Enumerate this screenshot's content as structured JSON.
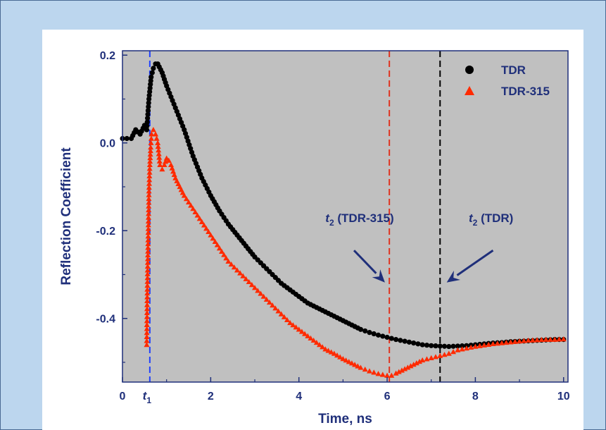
{
  "chart_data": {
    "type": "scatter",
    "xlabel": "Time, ns",
    "ylabel": "Reflection Coefficient",
    "xlim": [
      0,
      10.1
    ],
    "ylim": [
      -0.545,
      0.21
    ],
    "x_ticks": [
      "0",
      "2",
      "4",
      "6",
      "8",
      "10"
    ],
    "x_tick_values": [
      0,
      2,
      4,
      6,
      8,
      10
    ],
    "t1_label": "t",
    "t1_sub": "1",
    "y_ticks": [
      "0.2",
      "0.0",
      "-0.2",
      "-0.4"
    ],
    "y_tick_values": [
      0.2,
      0.0,
      -0.2,
      -0.4
    ],
    "background": "#c0c0c0",
    "axis_color": "#1f2f7a",
    "legend_placement": "top-right",
    "series": [
      {
        "name": "TDR",
        "marker": "circle",
        "color": "#000000",
        "x": [
          0.0,
          0.2,
          0.3,
          0.4,
          0.5,
          0.55,
          0.6,
          0.65,
          0.7,
          0.75,
          0.8,
          0.9,
          1.0,
          1.2,
          1.4,
          1.6,
          1.8,
          2.0,
          2.2,
          2.4,
          2.6,
          2.8,
          3.0,
          3.2,
          3.4,
          3.6,
          3.8,
          4.0,
          4.2,
          4.4,
          4.6,
          4.8,
          5.0,
          5.2,
          5.4,
          5.6,
          5.8,
          6.0,
          6.2,
          6.4,
          6.6,
          6.8,
          7.0,
          7.2,
          7.4,
          7.6,
          7.8,
          8.0,
          8.2,
          8.4,
          8.6,
          8.8,
          9.0,
          9.2,
          9.4,
          9.6,
          9.8,
          10.0
        ],
        "y": [
          0.01,
          0.01,
          0.03,
          0.02,
          0.04,
          0.03,
          0.1,
          0.15,
          0.17,
          0.18,
          0.18,
          0.16,
          0.13,
          0.08,
          0.03,
          -0.03,
          -0.08,
          -0.12,
          -0.155,
          -0.185,
          -0.21,
          -0.235,
          -0.26,
          -0.28,
          -0.3,
          -0.32,
          -0.335,
          -0.35,
          -0.365,
          -0.375,
          -0.385,
          -0.395,
          -0.405,
          -0.415,
          -0.425,
          -0.432,
          -0.438,
          -0.443,
          -0.448,
          -0.452,
          -0.456,
          -0.46,
          -0.462,
          -0.463,
          -0.464,
          -0.463,
          -0.462,
          -0.46,
          -0.458,
          -0.456,
          -0.455,
          -0.453,
          -0.452,
          -0.451,
          -0.45,
          -0.449,
          -0.448,
          -0.448
        ]
      },
      {
        "name": "TDR-315",
        "marker": "triangle",
        "color": "#ff2a00",
        "x": [
          0.55,
          0.56,
          0.57,
          0.58,
          0.59,
          0.6,
          0.62,
          0.64,
          0.66,
          0.7,
          0.75,
          0.8,
          0.85,
          0.9,
          0.95,
          1.0,
          1.05,
          1.1,
          1.2,
          1.3,
          1.4,
          1.6,
          1.8,
          2.0,
          2.2,
          2.4,
          2.6,
          2.8,
          3.0,
          3.2,
          3.4,
          3.6,
          3.8,
          4.0,
          4.2,
          4.4,
          4.6,
          4.8,
          5.0,
          5.2,
          5.4,
          5.6,
          5.8,
          6.0,
          6.1,
          6.2,
          6.4,
          6.6,
          6.8,
          7.0,
          7.2,
          7.4,
          7.6,
          7.8,
          8.0,
          8.2,
          8.4,
          8.6,
          8.8,
          9.0,
          9.2,
          9.4,
          9.6,
          9.8,
          10.0
        ],
        "y": [
          -0.46,
          -0.36,
          -0.29,
          -0.23,
          -0.17,
          -0.11,
          -0.05,
          -0.01,
          0.02,
          0.03,
          0.02,
          0.0,
          -0.05,
          -0.06,
          -0.05,
          -0.035,
          -0.04,
          -0.05,
          -0.08,
          -0.1,
          -0.12,
          -0.15,
          -0.18,
          -0.21,
          -0.24,
          -0.27,
          -0.29,
          -0.31,
          -0.33,
          -0.35,
          -0.37,
          -0.39,
          -0.41,
          -0.425,
          -0.44,
          -0.455,
          -0.47,
          -0.48,
          -0.492,
          -0.502,
          -0.512,
          -0.52,
          -0.526,
          -0.53,
          -0.53,
          -0.525,
          -0.515,
          -0.505,
          -0.495,
          -0.49,
          -0.485,
          -0.48,
          -0.472,
          -0.468,
          -0.464,
          -0.461,
          -0.458,
          -0.456,
          -0.454,
          -0.452,
          -0.45,
          -0.449,
          -0.448,
          -0.448,
          -0.447
        ]
      }
    ],
    "vlines": [
      {
        "x": 0.62,
        "color": "#2040ff"
      },
      {
        "x": 6.05,
        "color": "#e0321e"
      },
      {
        "x": 7.2,
        "color": "#000000"
      }
    ],
    "annotations": [
      {
        "text": "t",
        "sub": "2",
        "suffix": " (TDR-315)",
        "text_x": 4.6,
        "text_y": -0.18,
        "arrow_from": [
          5.25,
          -0.245
        ],
        "arrow_to": [
          5.95,
          -0.318
        ]
      },
      {
        "text": "t",
        "sub": "2",
        "suffix": " (TDR)",
        "text_x": 7.85,
        "text_y": -0.18,
        "arrow_from": [
          8.4,
          -0.245
        ],
        "arrow_to": [
          7.35,
          -0.318
        ]
      }
    ]
  }
}
